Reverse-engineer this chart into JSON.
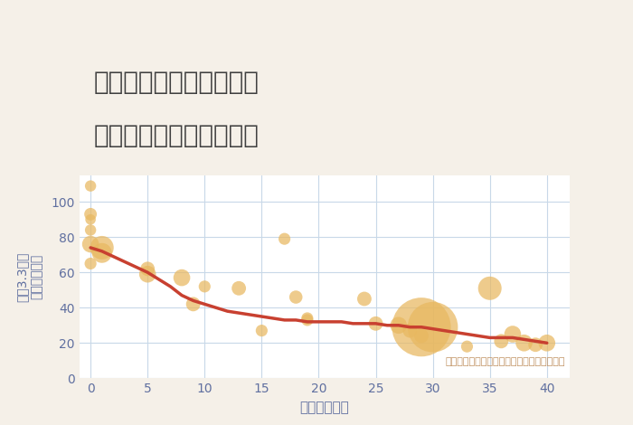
{
  "title_line1": "三重県鈴鹿市大久保町の",
  "title_line2": "築年数別中古戸建て価格",
  "xlabel": "築年数（年）",
  "ylabel": "単価（万円）",
  "ylabel_sub": "坪（3.3㎡）",
  "annotation": "円の大きさは、取引のあった物件面積を示す",
  "background_color": "#f5f0e8",
  "plot_bg_color": "#ffffff",
  "grid_color": "#c8d8e8",
  "bubble_color": "#e8b860",
  "bubble_alpha": 0.72,
  "line_color": "#c84030",
  "line_width": 2.5,
  "title_color": "#404040",
  "axis_color": "#6070a0",
  "annotation_color": "#c09060",
  "xlim": [
    -1,
    42
  ],
  "ylim": [
    0,
    115
  ],
  "xticks": [
    0,
    5,
    10,
    15,
    20,
    25,
    30,
    35,
    40
  ],
  "yticks": [
    0,
    20,
    40,
    60,
    80,
    100
  ],
  "scatter_x": [
    0,
    0,
    0,
    0,
    0,
    0,
    1,
    1,
    5,
    5,
    8,
    9,
    10,
    13,
    15,
    17,
    18,
    19,
    19,
    24,
    25,
    27,
    28,
    29,
    29,
    30,
    33,
    35,
    36,
    37,
    38,
    39,
    40
  ],
  "scatter_y": [
    109,
    93,
    90,
    84,
    76,
    65,
    74,
    71,
    59,
    62,
    57,
    42,
    52,
    51,
    27,
    79,
    46,
    34,
    33,
    45,
    31,
    30,
    27,
    29,
    24,
    29,
    18,
    51,
    21,
    25,
    20,
    19,
    20
  ],
  "scatter_size": [
    80,
    100,
    70,
    80,
    180,
    90,
    350,
    250,
    180,
    130,
    180,
    130,
    90,
    130,
    90,
    90,
    110,
    90,
    90,
    130,
    130,
    180,
    130,
    2200,
    130,
    1600,
    90,
    350,
    130,
    180,
    180,
    130,
    180
  ],
  "line_x": [
    0,
    1,
    2,
    3,
    4,
    5,
    6,
    7,
    8,
    9,
    10,
    11,
    12,
    13,
    14,
    15,
    16,
    17,
    18,
    19,
    20,
    21,
    22,
    23,
    24,
    25,
    26,
    27,
    28,
    29,
    30,
    31,
    32,
    33,
    34,
    35,
    36,
    37,
    38,
    39,
    40
  ],
  "line_y": [
    74,
    72,
    69,
    66,
    63,
    60,
    56,
    52,
    47,
    44,
    42,
    40,
    38,
    37,
    36,
    35,
    34,
    33,
    33,
    32,
    32,
    32,
    32,
    31,
    31,
    31,
    30,
    30,
    29,
    29,
    28,
    27,
    26,
    25,
    24,
    23,
    23,
    23,
    22,
    21,
    20
  ]
}
